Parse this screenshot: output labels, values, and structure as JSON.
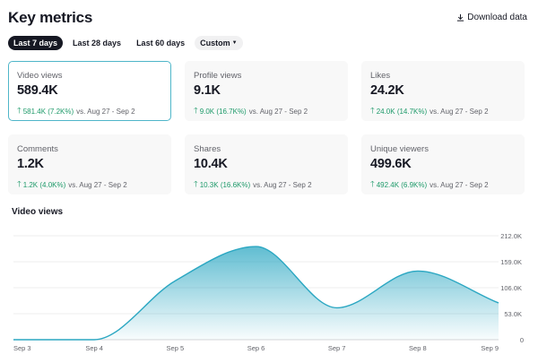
{
  "header": {
    "title": "Key metrics",
    "download_label": "Download data"
  },
  "tabs": [
    {
      "label": "Last 7 days",
      "active": true
    },
    {
      "label": "Last 28 days",
      "active": false
    },
    {
      "label": "Last 60 days",
      "active": false
    },
    {
      "label": "Custom",
      "active": false
    }
  ],
  "metrics": [
    {
      "label": "Video views",
      "value": "589.4K",
      "delta": "581.4K (7.2K%)",
      "compare": "vs.  Aug 27 - Sep 2",
      "selected": true
    },
    {
      "label": "Profile views",
      "value": "9.1K",
      "delta": "9.0K (16.7K%)",
      "compare": "vs.  Aug 27 - Sep 2",
      "selected": false
    },
    {
      "label": "Likes",
      "value": "24.2K",
      "delta": "24.0K (14.7K%)",
      "compare": "vs.  Aug 27 - Sep 2",
      "selected": false
    },
    {
      "label": "Comments",
      "value": "1.2K",
      "delta": "1.2K (4.0K%)",
      "compare": "vs.  Aug 27 - Sep 2",
      "selected": false
    },
    {
      "label": "Shares",
      "value": "10.4K",
      "delta": "10.3K (16.6K%)",
      "compare": "vs.  Aug 27 - Sep 2",
      "selected": false
    },
    {
      "label": "Unique viewers",
      "value": "499.6K",
      "delta": "492.4K (6.9K%)",
      "compare": "vs.  Aug 27 - Sep 2",
      "selected": false
    }
  ],
  "colors": {
    "accent": "#4fb6c9",
    "positive": "#1e9a6a",
    "line": "#2ba7c2"
  },
  "chart_data": {
    "type": "area",
    "title": "Video views",
    "x": [
      "Sep 3",
      "Sep 4",
      "Sep 5",
      "Sep 6",
      "Sep 7",
      "Sep 8",
      "Sep 9"
    ],
    "values": [
      0,
      0,
      120000,
      190000,
      65000,
      140000,
      75000
    ],
    "yticks": [
      "0",
      "53.0K",
      "106.0K",
      "159.0K",
      "212.0K"
    ],
    "ylim": [
      0,
      212000
    ],
    "grid": true
  }
}
